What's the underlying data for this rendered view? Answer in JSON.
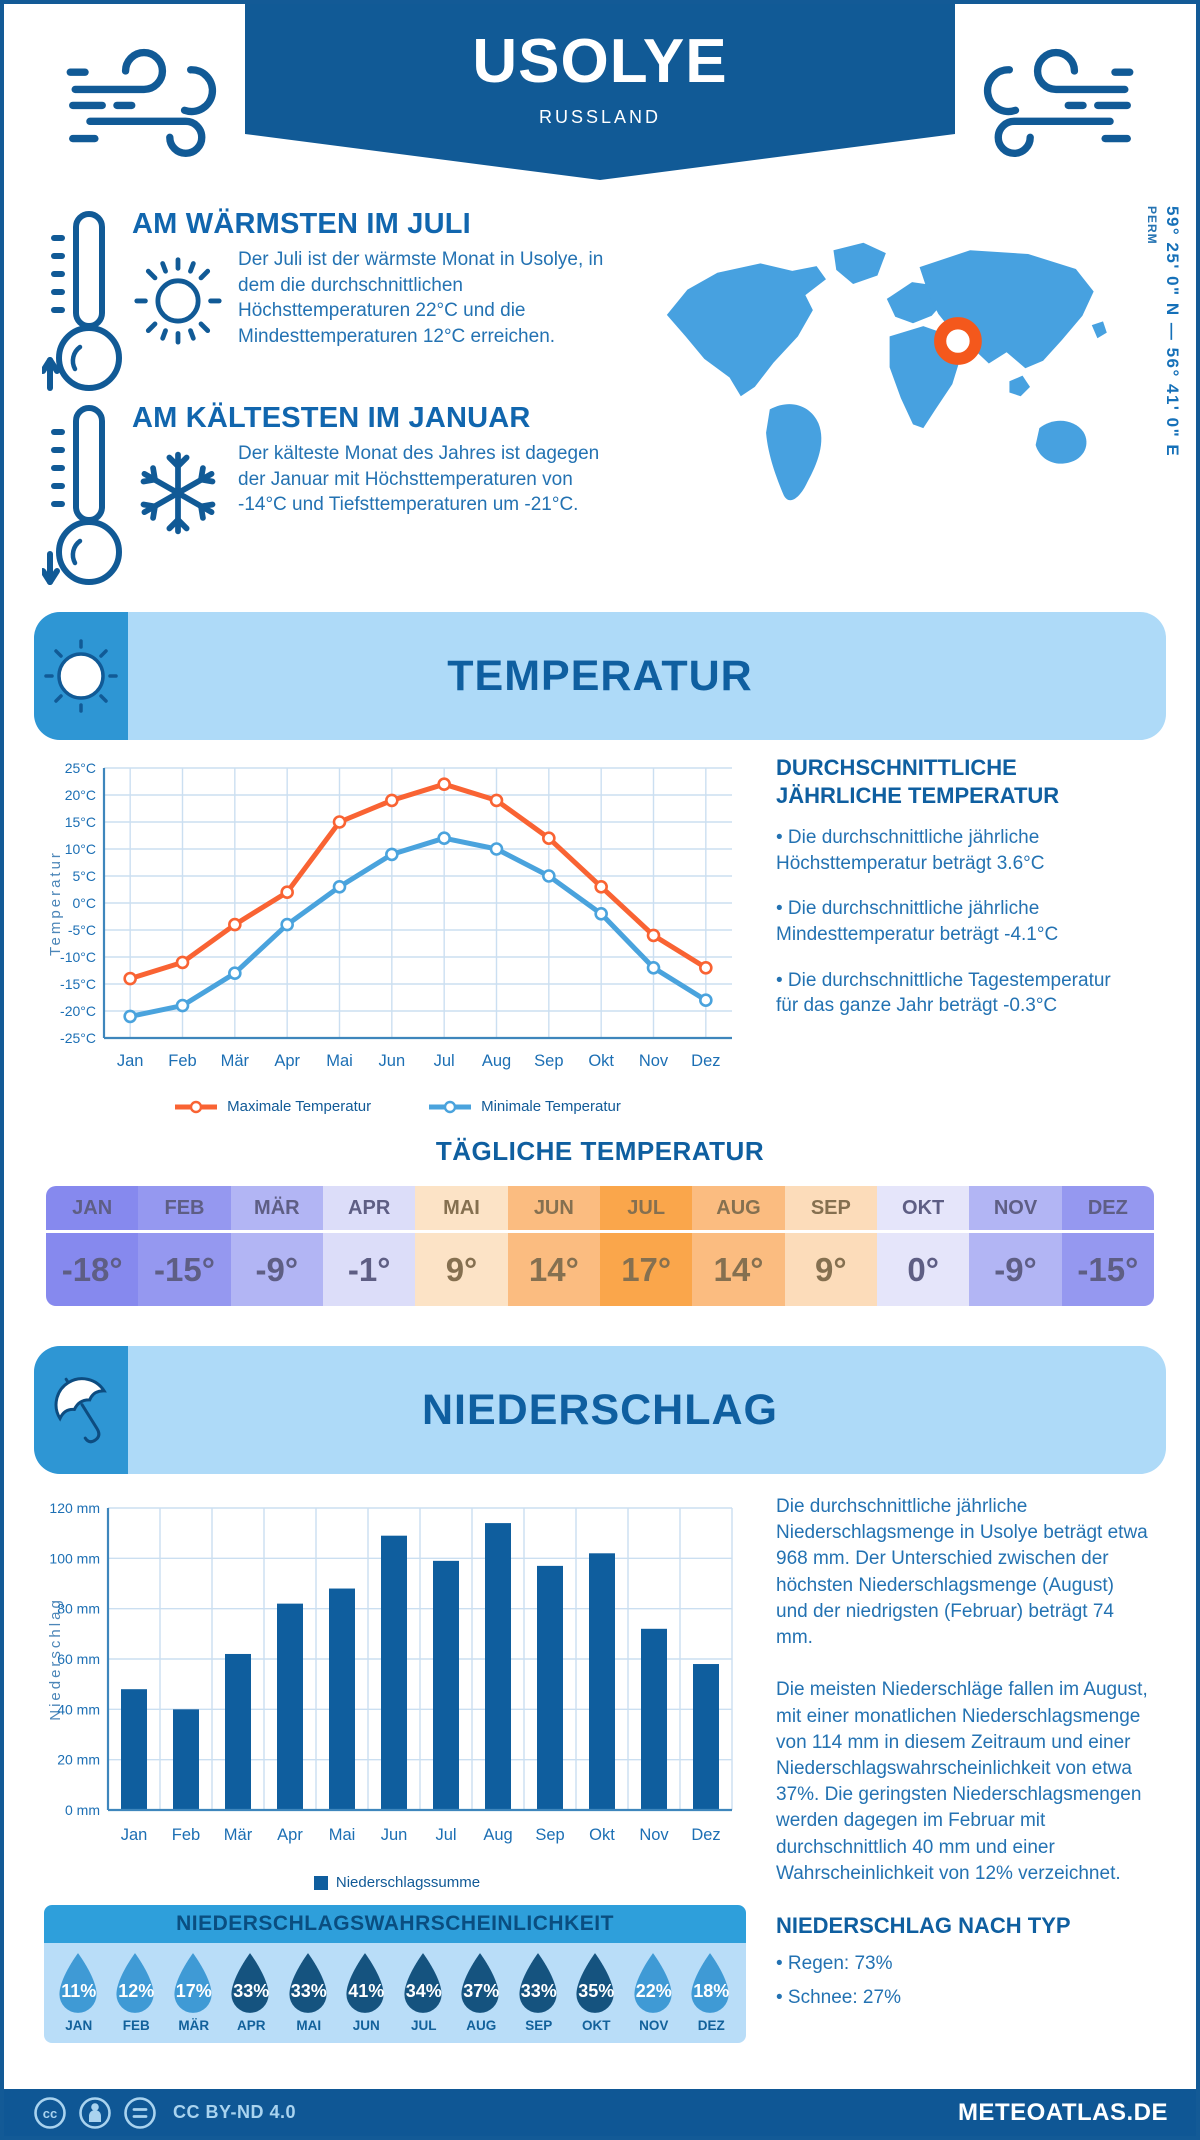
{
  "page": {
    "title": "USOLYE",
    "subtitle": "RUSSLAND",
    "coordinates": "59° 25' 0\" N — 56° 41' 0\" E",
    "region": "PERM"
  },
  "facts": {
    "warm": {
      "title": "AM WÄRMSTEN IM JULI",
      "text": "Der Juli ist der wärmste Monat in Usolye, in dem die durchschnittlichen Höchsttemperaturen 22°C und die Mindesttemperaturen 12°C erreichen."
    },
    "cold": {
      "title": "AM KÄLTESTEN IM JANUAR",
      "text": "Der kälteste Monat des Jahres ist dagegen der Januar mit Höchsttemperaturen von -14°C und Tiefsttemperaturen um -21°C."
    }
  },
  "sections": {
    "temperature": "TEMPERATUR",
    "precipitation": "NIEDERSCHLAG"
  },
  "temp_summary": {
    "title": "DURCHSCHNITTLICHE JÄHRLICHE TEMPERATUR",
    "bullets": [
      "Die durchschnittliche jährliche Höchsttemperatur beträgt 3.6°C",
      "Die durchschnittliche jährliche Mindesttemperatur beträgt -4.1°C",
      "Die durchschnittliche Tagestemperatur für das ganze Jahr beträgt -0.3°C"
    ]
  },
  "daily_table": {
    "title": "TÄGLICHE TEMPERATUR",
    "months": [
      "JAN",
      "FEB",
      "MÄR",
      "APR",
      "MAI",
      "JUN",
      "JUL",
      "AUG",
      "SEP",
      "OKT",
      "NOV",
      "DEZ"
    ],
    "values": [
      "-18°",
      "-15°",
      "-9°",
      "-1°",
      "9°",
      "14°",
      "17°",
      "14°",
      "9°",
      "0°",
      "-9°",
      "-15°"
    ],
    "colors": [
      "#8689EE",
      "#9598F0",
      "#B2B5F4",
      "#DCDDF9",
      "#FCE3C6",
      "#FBBC80",
      "#FAA64B",
      "#FBBC80",
      "#FCDCBA",
      "#E5E5FA",
      "#B2B5F4",
      "#9598F0"
    ],
    "cold_text_color": "#5E5E84",
    "warm_text_color": "#857050"
  },
  "precip_summary": {
    "paragraphs": [
      "Die durchschnittliche jährliche Niederschlagsmenge in Usolye beträgt etwa 968 mm. Der Unterschied zwischen der höchsten Niederschlagsmenge (August) und der niedrigsten (Februar) beträgt 74 mm.",
      "Die meisten Niederschläge fallen im August, mit einer monatlichen Niederschlagsmenge von 114 mm in diesem Zeitraum und einer Niederschlagswahrscheinlichkeit von etwa 37%. Die geringsten Niederschlagsmengen werden dagegen im Februar mit durchschnittlich 40 mm und einer Wahrscheinlichkeit von 12% verzeichnet."
    ]
  },
  "precip_type": {
    "title": "NIEDERSCHLAG NACH TYP",
    "bullets": [
      "Regen: 73%",
      "Schnee: 27%"
    ]
  },
  "probability": {
    "title": "NIEDERSCHLAGSWAHRSCHEINLICHKEIT",
    "months": [
      "JAN",
      "FEB",
      "MÄR",
      "APR",
      "MAI",
      "JUN",
      "JUL",
      "AUG",
      "SEP",
      "OKT",
      "NOV",
      "DEZ"
    ],
    "values": [
      "11%",
      "12%",
      "17%",
      "33%",
      "33%",
      "41%",
      "34%",
      "37%",
      "33%",
      "35%",
      "22%",
      "18%"
    ],
    "dark": [
      false,
      false,
      false,
      true,
      true,
      true,
      true,
      true,
      true,
      true,
      false,
      false
    ],
    "light_color": "#3F9AD5",
    "dark_color": "#15537F"
  },
  "footer": {
    "license": "CC BY-ND 4.0",
    "site": "METEOATLAS.DE"
  },
  "chart_data": [
    {
      "type": "line",
      "categories": [
        "Jan",
        "Feb",
        "Mär",
        "Apr",
        "Mai",
        "Jun",
        "Jul",
        "Aug",
        "Sep",
        "Okt",
        "Nov",
        "Dez"
      ],
      "series": [
        {
          "name": "Maximale Temperatur",
          "color": "#F96333",
          "values": [
            -14,
            -11,
            -4,
            2,
            15,
            19,
            22,
            19,
            12,
            3,
            -6,
            -12
          ]
        },
        {
          "name": "Minimale Temperatur",
          "color": "#4AA3DD",
          "values": [
            -21,
            -19,
            -13,
            -4,
            3,
            9,
            12,
            10,
            5,
            -2,
            -12,
            -18
          ]
        }
      ],
      "ylabel": "Temperatur",
      "ylim": [
        -25,
        25
      ],
      "ytick_step": 5,
      "ytick_suffix": "°C",
      "grid": true,
      "legend_position": "bottom"
    },
    {
      "type": "bar",
      "categories": [
        "Jan",
        "Feb",
        "Mär",
        "Apr",
        "Mai",
        "Jun",
        "Jul",
        "Aug",
        "Sep",
        "Okt",
        "Nov",
        "Dez"
      ],
      "series": [
        {
          "name": "Niederschlagssumme",
          "color": "#0F5E9E",
          "values": [
            48,
            40,
            62,
            82,
            88,
            109,
            99,
            114,
            97,
            102,
            72,
            58
          ]
        }
      ],
      "ylabel": "Niederschlag",
      "ylim": [
        0,
        120
      ],
      "ytick_step": 20,
      "ytick_suffix": " mm",
      "grid": true,
      "legend_position": "bottom"
    }
  ]
}
